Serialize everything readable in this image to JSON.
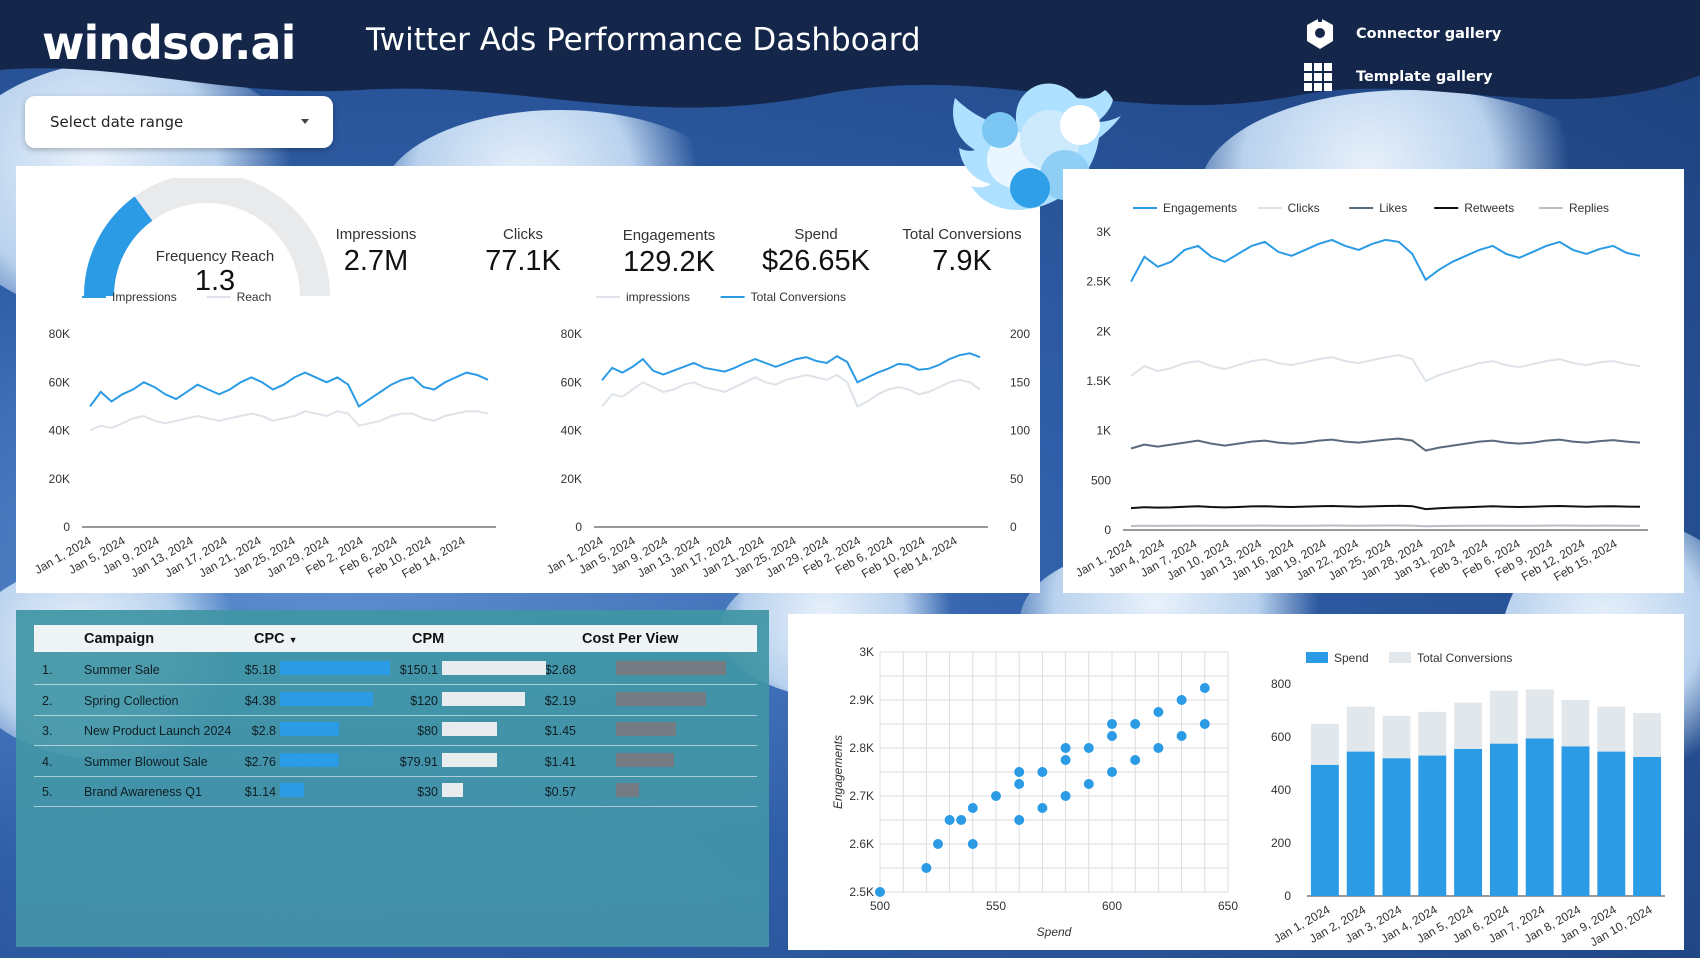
{
  "header": {
    "logo": "windsor.ai",
    "title": "Twitter Ads Performance Dashboard",
    "links": [
      {
        "label": "Connector gallery",
        "icon": "connector-icon"
      },
      {
        "label": "Template gallery",
        "icon": "grid-icon"
      }
    ],
    "date_select": {
      "label": "Select date range"
    }
  },
  "kpis": {
    "gauge": {
      "label": "Frequency Reach",
      "value": "1.3",
      "fill_fraction": 0.3
    },
    "items": [
      {
        "label": "Impressions",
        "value": "2.7M"
      },
      {
        "label": "Clicks",
        "value": "77.1K"
      },
      {
        "label": "Engagements",
        "value": "129.2K"
      },
      {
        "label": "Spend",
        "value": "$26.65K"
      },
      {
        "label": "Total Conversions",
        "value": "7.9K"
      }
    ]
  },
  "colors": {
    "blue": "#2b9be6",
    "light": "#dde3e8",
    "dark1": "#5a6b7d",
    "dark2": "#111111",
    "grey": "#b8bec4",
    "bar_cpm": "#e8ecef",
    "bar_cpv": "#757b82"
  },
  "chart_data": [
    {
      "type": "line",
      "id": "imp-reach",
      "x_labels": [
        "Jan 1, 2024",
        "Jan 5, 2024",
        "Jan 9, 2024",
        "Jan 13, 2024",
        "Jan 17, 2024",
        "Jan 21, 2024",
        "Jan 25, 2024",
        "Jan 29, 2024",
        "Feb 2, 2024",
        "Feb 6, 2024",
        "Feb 10, 2024",
        "Feb 14, 2024"
      ],
      "y_ticks": [
        "0",
        "20K",
        "40K",
        "60K",
        "80K"
      ],
      "ylim": [
        0,
        80000
      ],
      "series": [
        {
          "name": "Impressions",
          "color": "#2b9be6",
          "values": [
            50000,
            56000,
            52000,
            55000,
            57000,
            60000,
            58000,
            55000,
            53000,
            56000,
            59000,
            57000,
            55000,
            57000,
            60000,
            62000,
            60000,
            57000,
            59000,
            62000,
            64000,
            62000,
            60000,
            62000,
            59000,
            50000,
            53000,
            56000,
            59000,
            61000,
            62000,
            58000,
            57000,
            60000,
            62000,
            64000,
            63000,
            61000
          ]
        },
        {
          "name": "Reach",
          "color": "#dde3e8",
          "values": [
            40000,
            42000,
            41000,
            43000,
            45000,
            46000,
            44000,
            43000,
            44000,
            45000,
            46000,
            45000,
            44000,
            45000,
            46000,
            47000,
            46000,
            44000,
            45000,
            46000,
            48000,
            47000,
            46000,
            48000,
            47000,
            42000,
            43000,
            44000,
            46000,
            47000,
            47000,
            45000,
            44000,
            46000,
            47000,
            48000,
            48000,
            47000
          ]
        }
      ]
    },
    {
      "type": "line",
      "id": "imp-conv",
      "x_labels": [
        "Jan 1, 2024",
        "Jan 5, 2024",
        "Jan 9, 2024",
        "Jan 13, 2024",
        "Jan 17, 2024",
        "Jan 21, 2024",
        "Jan 25, 2024",
        "Jan 29, 2024",
        "Feb 2, 2024",
        "Feb 6, 2024",
        "Feb 10, 2024",
        "Feb 14, 2024"
      ],
      "y_ticks": [
        "0",
        "20K",
        "40K",
        "60K",
        "80K"
      ],
      "y2_ticks": [
        "0",
        "50",
        "100",
        "150",
        "200"
      ],
      "ylim": [
        0,
        80000
      ],
      "y2lim": [
        0,
        200
      ],
      "series": [
        {
          "name": "impressions",
          "color": "#dde3e8",
          "axis": "left",
          "values": [
            50000,
            55000,
            54000,
            57000,
            60000,
            58000,
            56000,
            57000,
            59000,
            60000,
            58000,
            57000,
            56000,
            58000,
            60000,
            62000,
            60000,
            59000,
            61000,
            62000,
            63000,
            62000,
            61000,
            63000,
            60000,
            50000,
            52000,
            55000,
            57000,
            58000,
            57000,
            55000,
            56000,
            58000,
            60000,
            61000,
            60000,
            57000
          ]
        },
        {
          "name": "Total Conversions",
          "color": "#2b9be6",
          "axis": "right",
          "values": [
            152,
            165,
            160,
            166,
            174,
            162,
            158,
            162,
            166,
            170,
            165,
            163,
            161,
            165,
            170,
            174,
            170,
            166,
            170,
            174,
            176,
            172,
            170,
            177,
            171,
            150,
            155,
            160,
            164,
            169,
            168,
            163,
            164,
            168,
            174,
            178,
            180,
            176
          ]
        }
      ]
    },
    {
      "type": "line",
      "id": "engagements",
      "x_labels": [
        "Jan 1, 2024",
        "Jan 4, 2024",
        "Jan 7, 2024",
        "Jan 10, 2024",
        "Jan 13, 2024",
        "Jan 16, 2024",
        "Jan 19, 2024",
        "Jan 22, 2024",
        "Jan 25, 2024",
        "Jan 28, 2024",
        "Jan 31, 2024",
        "Feb 3, 2024",
        "Feb 6, 2024",
        "Feb 9, 2024",
        "Feb 12, 2024",
        "Feb 15, 2024"
      ],
      "y_ticks": [
        "0",
        "500",
        "1K",
        "1.5K",
        "2K",
        "2.5K",
        "3K"
      ],
      "ylim": [
        0,
        3000
      ],
      "series": [
        {
          "name": "Engagements",
          "color": "#2b9be6",
          "values": [
            2500,
            2750,
            2650,
            2700,
            2820,
            2860,
            2750,
            2700,
            2780,
            2860,
            2900,
            2800,
            2760,
            2820,
            2880,
            2920,
            2860,
            2820,
            2880,
            2920,
            2900,
            2780,
            2520,
            2620,
            2700,
            2760,
            2820,
            2860,
            2780,
            2740,
            2800,
            2860,
            2900,
            2820,
            2780,
            2830,
            2860,
            2790,
            2760
          ]
        },
        {
          "name": "Clicks",
          "color": "#dde3e8",
          "values": [
            1550,
            1650,
            1600,
            1630,
            1680,
            1700,
            1650,
            1620,
            1660,
            1700,
            1720,
            1680,
            1660,
            1690,
            1720,
            1740,
            1700,
            1680,
            1710,
            1740,
            1760,
            1720,
            1500,
            1560,
            1600,
            1640,
            1680,
            1700,
            1660,
            1640,
            1670,
            1700,
            1720,
            1680,
            1660,
            1690,
            1700,
            1670,
            1650
          ]
        },
        {
          "name": "Likes",
          "color": "#5a6b7d",
          "values": [
            820,
            860,
            840,
            860,
            880,
            900,
            870,
            850,
            870,
            890,
            900,
            880,
            870,
            880,
            900,
            910,
            890,
            880,
            895,
            910,
            920,
            900,
            800,
            830,
            850,
            870,
            890,
            900,
            880,
            870,
            880,
            900,
            910,
            890,
            880,
            895,
            905,
            890,
            880
          ]
        },
        {
          "name": "Retweets",
          "color": "#111111",
          "values": [
            220,
            230,
            225,
            228,
            235,
            240,
            232,
            228,
            232,
            238,
            240,
            235,
            232,
            236,
            240,
            242,
            238,
            235,
            238,
            242,
            244,
            240,
            210,
            218,
            225,
            230,
            235,
            240,
            235,
            232,
            235,
            240,
            242,
            238,
            235,
            238,
            240,
            236,
            234
          ]
        },
        {
          "name": "Replies",
          "color": "#b8bec4",
          "values": [
            40,
            42,
            41,
            42,
            43,
            44,
            43,
            42,
            43,
            44,
            44,
            43,
            43,
            43,
            44,
            45,
            44,
            43,
            44,
            45,
            45,
            44,
            38,
            40,
            41,
            42,
            43,
            44,
            43,
            42,
            43,
            44,
            45,
            44,
            43,
            44,
            44,
            43,
            43
          ]
        }
      ]
    },
    {
      "type": "scatter",
      "id": "spend-eng",
      "xlabel": "Spend",
      "ylabel": "Engagements",
      "x_ticks": [
        "500",
        "550",
        "600",
        "650"
      ],
      "y_ticks": [
        "2.5K",
        "2.6K",
        "2.7K",
        "2.8K",
        "2.9K",
        "3K"
      ],
      "xlim": [
        500,
        650
      ],
      "ylim": [
        2500,
        3000
      ],
      "color": "#2b9be6",
      "points": [
        [
          500,
          2500
        ],
        [
          520,
          2550
        ],
        [
          525,
          2600
        ],
        [
          530,
          2650
        ],
        [
          535,
          2650
        ],
        [
          540,
          2600
        ],
        [
          540,
          2675
        ],
        [
          550,
          2700
        ],
        [
          560,
          2650
        ],
        [
          560,
          2725
        ],
        [
          560,
          2750
        ],
        [
          570,
          2675
        ],
        [
          570,
          2750
        ],
        [
          580,
          2700
        ],
        [
          580,
          2775
        ],
        [
          580,
          2800
        ],
        [
          590,
          2725
        ],
        [
          590,
          2800
        ],
        [
          600,
          2750
        ],
        [
          600,
          2825
        ],
        [
          600,
          2850
        ],
        [
          610,
          2775
        ],
        [
          610,
          2850
        ],
        [
          620,
          2800
        ],
        [
          620,
          2875
        ],
        [
          630,
          2825
        ],
        [
          630,
          2900
        ],
        [
          640,
          2850
        ],
        [
          640,
          2925
        ]
      ]
    },
    {
      "type": "bar",
      "stacked": true,
      "id": "spend-conv",
      "categories": [
        "Jan 1, 2024",
        "Jan 2, 2024",
        "Jan 3, 2024",
        "Jan 4, 2024",
        "Jan 5, 2024",
        "Jan 6, 2024",
        "Jan 7, 2024",
        "Jan 8, 2024",
        "Jan 9, 2024",
        "Jan 10, 2024"
      ],
      "y_ticks": [
        "0",
        "200",
        "400",
        "600",
        "800"
      ],
      "ylim": [
        0,
        800
      ],
      "series": [
        {
          "name": "Spend",
          "color": "#2b9be6",
          "values": [
            495,
            545,
            520,
            530,
            555,
            575,
            595,
            565,
            545,
            525
          ]
        },
        {
          "name": "Total Conversions",
          "color": "#e2e7ec",
          "values": [
            155,
            170,
            160,
            165,
            175,
            200,
            185,
            175,
            170,
            165
          ]
        }
      ]
    }
  ],
  "table": {
    "columns": [
      "Campaign",
      "CPC",
      "CPM",
      "Cost Per View"
    ],
    "sort_indicator": "▼",
    "rows": [
      {
        "index": "1.",
        "campaign": "Summer Sale",
        "cpc": "$5.18",
        "cpc_num": 5.18,
        "cpm": "$150.1",
        "cpm_num": 150.1,
        "cpv": "$2.68",
        "cpv_num": 2.68
      },
      {
        "index": "2.",
        "campaign": "Spring Collection",
        "cpc": "$4.38",
        "cpc_num": 4.38,
        "cpm": "$120",
        "cpm_num": 120,
        "cpv": "$2.19",
        "cpv_num": 2.19
      },
      {
        "index": "3.",
        "campaign": "New Product Launch 2024",
        "cpc": "$2.8",
        "cpc_num": 2.8,
        "cpm": "$80",
        "cpm_num": 80,
        "cpv": "$1.45",
        "cpv_num": 1.45
      },
      {
        "index": "4.",
        "campaign": "Summer Blowout Sale",
        "cpc": "$2.76",
        "cpc_num": 2.76,
        "cpm": "$79.91",
        "cpm_num": 79.91,
        "cpv": "$1.41",
        "cpv_num": 1.41
      },
      {
        "index": "5.",
        "campaign": "Brand Awareness Q1",
        "cpc": "$1.14",
        "cpc_num": 1.14,
        "cpm": "$30",
        "cpm_num": 30,
        "cpv": "$0.57",
        "cpv_num": 0.57
      }
    ]
  }
}
